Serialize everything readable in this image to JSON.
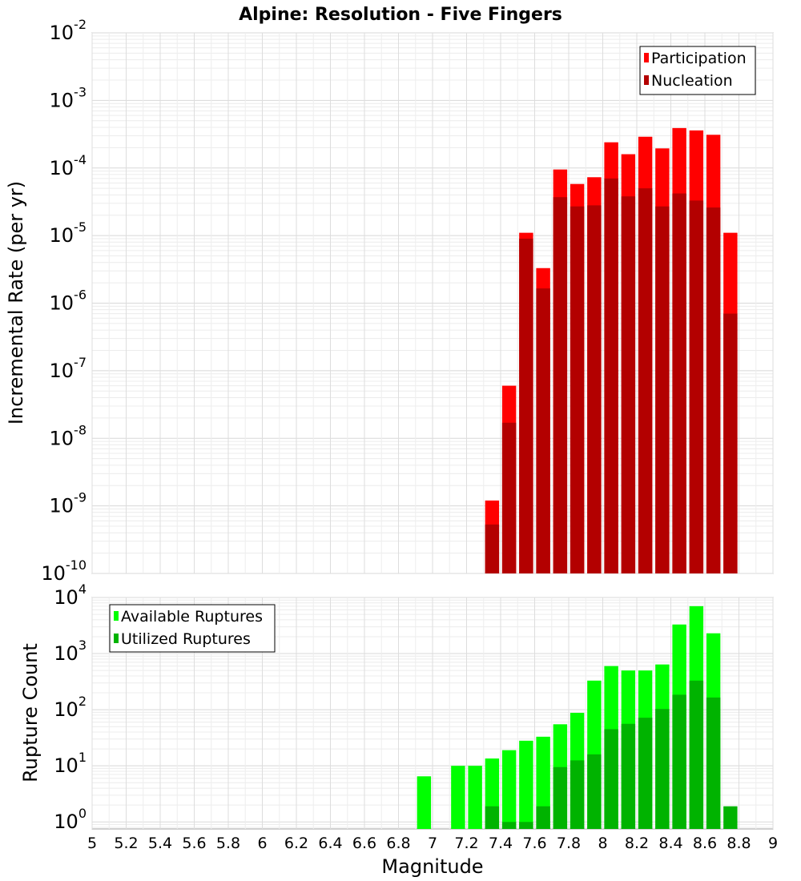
{
  "chart_data": {
    "title": "Alpine: Resolution - Five Fingers",
    "xlabel": "Magnitude",
    "xlim": [
      5,
      9
    ],
    "x_ticks": [
      "5",
      "5.2",
      "5.4",
      "5.6",
      "5.8",
      "6",
      "6.2",
      "6.4",
      "6.6",
      "6.8",
      "7",
      "7.2",
      "7.4",
      "7.6",
      "7.8",
      "8",
      "8.2",
      "8.4",
      "8.6",
      "8.8",
      "9"
    ],
    "grid": true,
    "panels": [
      {
        "type": "bar",
        "ylabel": "Incremental Rate (per yr)",
        "yscale": "log",
        "ylim": [
          1e-10,
          0.01
        ],
        "y_ticks": [
          {
            "base": "10",
            "exp": "-10"
          },
          {
            "base": "10",
            "exp": "-9"
          },
          {
            "base": "10",
            "exp": "-8"
          },
          {
            "base": "10",
            "exp": "-7"
          },
          {
            "base": "10",
            "exp": "-6"
          },
          {
            "base": "10",
            "exp": "-5"
          },
          {
            "base": "10",
            "exp": "-4"
          },
          {
            "base": "10",
            "exp": "-3"
          },
          {
            "base": "10",
            "exp": "-2"
          }
        ],
        "legend_position": "top-right",
        "x": [
          7.35,
          7.45,
          7.55,
          7.65,
          7.75,
          7.85,
          7.95,
          8.05,
          8.15,
          8.25,
          8.35,
          8.45,
          8.55,
          8.65,
          8.75
        ],
        "series": [
          {
            "name": "Participation",
            "color": "#ff0000",
            "values": [
              1.2e-09,
              6e-08,
              1.1e-05,
              3.3e-06,
              9.5e-05,
              5.8e-05,
              7.3e-05,
              0.00024,
              0.00016,
              0.00029,
              0.000195,
              0.00039,
              0.00036,
              0.00031,
              1.1e-05
            ]
          },
          {
            "name": "Nucleation",
            "color": "#b30000",
            "values": [
              5.3e-10,
              1.7e-08,
              9e-06,
              1.65e-06,
              3.7e-05,
              2.7e-05,
              2.8e-05,
              7e-05,
              3.8e-05,
              5e-05,
              2.7e-05,
              4.2e-05,
              3.3e-05,
              2.6e-05,
              7e-07
            ]
          }
        ]
      },
      {
        "type": "bar",
        "ylabel": "Rupture Count",
        "yscale": "log",
        "ylim": [
          0.75,
          10000
        ],
        "y_ticks": [
          {
            "base": "10",
            "exp": "0"
          },
          {
            "base": "10",
            "exp": "1"
          },
          {
            "base": "10",
            "exp": "2"
          },
          {
            "base": "10",
            "exp": "3"
          },
          {
            "base": "10",
            "exp": "4"
          }
        ],
        "legend_position": "top-left",
        "x": [
          6.95,
          7.15,
          7.25,
          7.35,
          7.45,
          7.55,
          7.65,
          7.75,
          7.85,
          7.95,
          8.05,
          8.15,
          8.25,
          8.35,
          8.45,
          8.55,
          8.65,
          8.75
        ],
        "series": [
          {
            "name": "Available Ruptures",
            "color": "#00ff00",
            "values": [
              6.5,
              10,
              10,
              13.5,
              19,
              28,
              33,
              55,
              88,
              330,
              600,
              500,
              500,
              640,
              3300,
              7000,
              2300,
              null
            ]
          },
          {
            "name": "Utilized Ruptures",
            "color": "#00b300",
            "values": [
              null,
              null,
              null,
              1.9,
              1,
              1,
              1.9,
              9.5,
              12.5,
              16,
              45,
              56,
              72,
              103,
              185,
              330,
              165,
              1.9
            ]
          }
        ]
      }
    ]
  }
}
